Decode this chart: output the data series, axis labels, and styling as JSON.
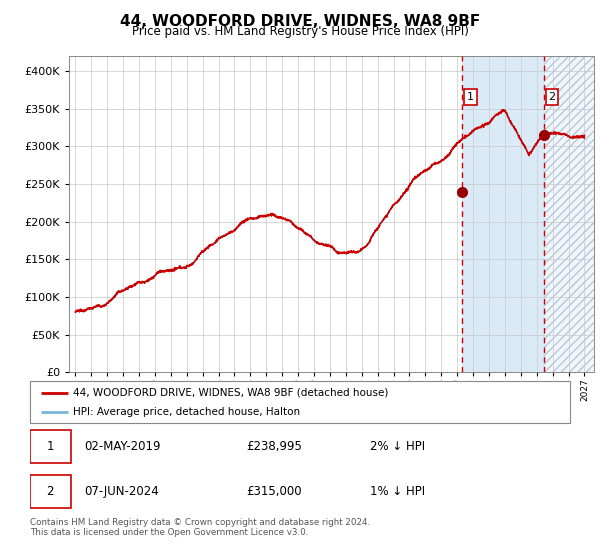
{
  "title": "44, WOODFORD DRIVE, WIDNES, WA8 9BF",
  "subtitle": "Price paid vs. HM Land Registry's House Price Index (HPI)",
  "legend_line1": "44, WOODFORD DRIVE, WIDNES, WA8 9BF (detached house)",
  "legend_line2": "HPI: Average price, detached house, Halton",
  "sale1_date": "02-MAY-2019",
  "sale1_price": "£238,995",
  "sale1_hpi": "2% ↓ HPI",
  "sale2_date": "07-JUN-2024",
  "sale2_price": "£315,000",
  "sale2_hpi": "1% ↓ HPI",
  "footer": "Contains HM Land Registry data © Crown copyright and database right 2024.\nThis data is licensed under the Open Government Licence v3.0.",
  "hpi_color": "#7ab4d8",
  "price_color": "#cc0000",
  "dot_color": "#990000",
  "vline_color": "#cc0000",
  "bg_shaded_color": "#dbeaf7",
  "bg_hatch_color": "#b8c8d8",
  "ylim": [
    0,
    420000
  ],
  "yticks": [
    0,
    50000,
    100000,
    150000,
    200000,
    250000,
    300000,
    350000,
    400000
  ],
  "sale1_year": 2019.33,
  "sale2_year": 2024.44,
  "sale1_value": 238995,
  "sale2_value": 315000,
  "xstart": 1995,
  "xend": 2027
}
